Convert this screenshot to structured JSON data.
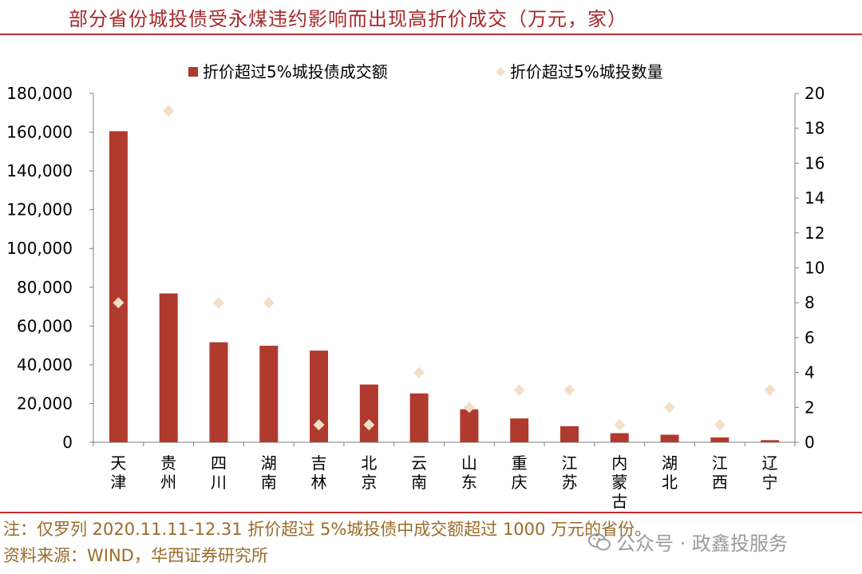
{
  "title": "部分省份城投债受永煤违约影响而出现高折价成交（万元，家）",
  "notes": {
    "note": "注：仅罗列 2020.11.11-12.31 折价超过 5%城投债中成交额超过 1000 万元的省份。",
    "source": "资料来源：WIND，华西证券研究所"
  },
  "watermark": {
    "text": "公众号 · 政鑫投服务",
    "icon": "wechat-icon"
  },
  "chart_data": {
    "type": "bar",
    "categories": [
      "天津",
      "贵州",
      "四川",
      "湖南",
      "吉林",
      "北京",
      "云南",
      "山东",
      "重庆",
      "江苏",
      "内蒙古",
      "湖北",
      "江西",
      "辽宁"
    ],
    "series": [
      {
        "name": "折价超过5%城投债成交额",
        "type": "bar",
        "axis": "left",
        "color": "#b03a2e",
        "values": [
          160500,
          76800,
          51600,
          49800,
          47300,
          29800,
          25200,
          17000,
          12300,
          8300,
          4700,
          3900,
          2500,
          1100
        ]
      },
      {
        "name": "折价超过5%城投数量",
        "type": "scatter",
        "axis": "right",
        "color": "#f3dfc8",
        "values": [
          8,
          19,
          8,
          8,
          1,
          1,
          4,
          2,
          3,
          3,
          1,
          2,
          1,
          3
        ]
      }
    ],
    "y_left": {
      "min": 0,
      "max": 180000,
      "ticks": [
        0,
        20000,
        40000,
        60000,
        80000,
        100000,
        120000,
        140000,
        160000,
        180000
      ],
      "tick_labels": [
        "0",
        "20,000",
        "40,000",
        "60,000",
        "80,000",
        "100,000",
        "120,000",
        "140,000",
        "160,000",
        "180,000"
      ]
    },
    "y_right": {
      "min": 0,
      "max": 20,
      "ticks": [
        0,
        2,
        4,
        6,
        8,
        10,
        12,
        14,
        16,
        18,
        20
      ],
      "tick_labels": [
        "0",
        "2",
        "4",
        "6",
        "8",
        "10",
        "12",
        "14",
        "16",
        "18",
        "20"
      ]
    },
    "legend_position": "top",
    "grid": false
  }
}
